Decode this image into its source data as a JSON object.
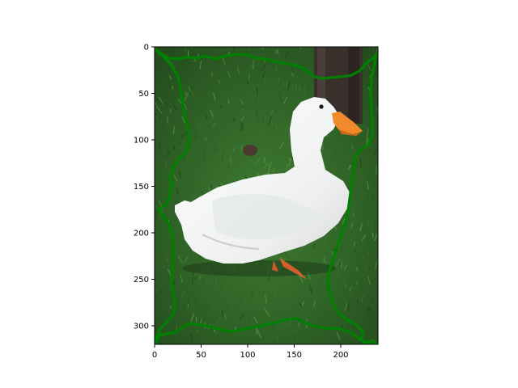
{
  "figure": {
    "image_extent": {
      "x": [
        0,
        240
      ],
      "y": [
        0,
        320
      ]
    },
    "x_ticks": [
      0,
      50,
      100,
      150,
      200
    ],
    "y_ticks": [
      0,
      50,
      100,
      150,
      200,
      250,
      300
    ],
    "contour_color": "#008000",
    "contour_points": [
      [
        0,
        2
      ],
      [
        8,
        8
      ],
      [
        15,
        12
      ],
      [
        25,
        13
      ],
      [
        35,
        11
      ],
      [
        45,
        12
      ],
      [
        55,
        10
      ],
      [
        65,
        13
      ],
      [
        75,
        10
      ],
      [
        88,
        8
      ],
      [
        100,
        9
      ],
      [
        110,
        12
      ],
      [
        122,
        14
      ],
      [
        135,
        17
      ],
      [
        148,
        19
      ],
      [
        158,
        22
      ],
      [
        166,
        28
      ],
      [
        172,
        32
      ],
      [
        180,
        34
      ],
      [
        190,
        33
      ],
      [
        200,
        32
      ],
      [
        210,
        31
      ],
      [
        220,
        26
      ],
      [
        228,
        17
      ],
      [
        235,
        12
      ],
      [
        238,
        8
      ],
      [
        236,
        20
      ],
      [
        233,
        35
      ],
      [
        232,
        50
      ],
      [
        233,
        65
      ],
      [
        234,
        80
      ],
      [
        234,
        95
      ],
      [
        230,
        105
      ],
      [
        222,
        110
      ],
      [
        216,
        118
      ],
      [
        214,
        130
      ],
      [
        212,
        145
      ],
      [
        210,
        160
      ],
      [
        208,
        175
      ],
      [
        205,
        190
      ],
      [
        200,
        203
      ],
      [
        196,
        215
      ],
      [
        192,
        228
      ],
      [
        188,
        240
      ],
      [
        186,
        253
      ],
      [
        188,
        265
      ],
      [
        192,
        277
      ],
      [
        198,
        287
      ],
      [
        206,
        293
      ],
      [
        214,
        298
      ],
      [
        220,
        302
      ],
      [
        224,
        308
      ],
      [
        222,
        315
      ],
      [
        226,
        318
      ],
      [
        234,
        316
      ],
      [
        240,
        320
      ],
      [
        232,
        320
      ],
      [
        220,
        314
      ],
      [
        210,
        307
      ],
      [
        198,
        303
      ],
      [
        186,
        303
      ],
      [
        175,
        301
      ],
      [
        164,
        298
      ],
      [
        152,
        292
      ],
      [
        140,
        294
      ],
      [
        128,
        297
      ],
      [
        115,
        300
      ],
      [
        103,
        302
      ],
      [
        90,
        305
      ],
      [
        78,
        306
      ],
      [
        67,
        303
      ],
      [
        55,
        300
      ],
      [
        43,
        298
      ],
      [
        35,
        298
      ],
      [
        30,
        302
      ],
      [
        22,
        307
      ],
      [
        12,
        309
      ],
      [
        6,
        310
      ],
      [
        3,
        315
      ],
      [
        1,
        320
      ],
      [
        2,
        312
      ],
      [
        6,
        303
      ],
      [
        14,
        295
      ],
      [
        20,
        288
      ],
      [
        22,
        276
      ],
      [
        20,
        264
      ],
      [
        18,
        252
      ],
      [
        19,
        240
      ],
      [
        20,
        228
      ],
      [
        20,
        215
      ],
      [
        19,
        203
      ],
      [
        15,
        190
      ],
      [
        8,
        180
      ],
      [
        4,
        175
      ],
      [
        12,
        170
      ],
      [
        16,
        162
      ],
      [
        18,
        150
      ],
      [
        17,
        140
      ],
      [
        20,
        130
      ],
      [
        26,
        120
      ],
      [
        32,
        115
      ],
      [
        36,
        108
      ],
      [
        37,
        97
      ],
      [
        35,
        85
      ],
      [
        32,
        73
      ],
      [
        30,
        60
      ],
      [
        28,
        45
      ],
      [
        25,
        32
      ],
      [
        18,
        20
      ],
      [
        9,
        10
      ],
      [
        0,
        2
      ]
    ]
  }
}
